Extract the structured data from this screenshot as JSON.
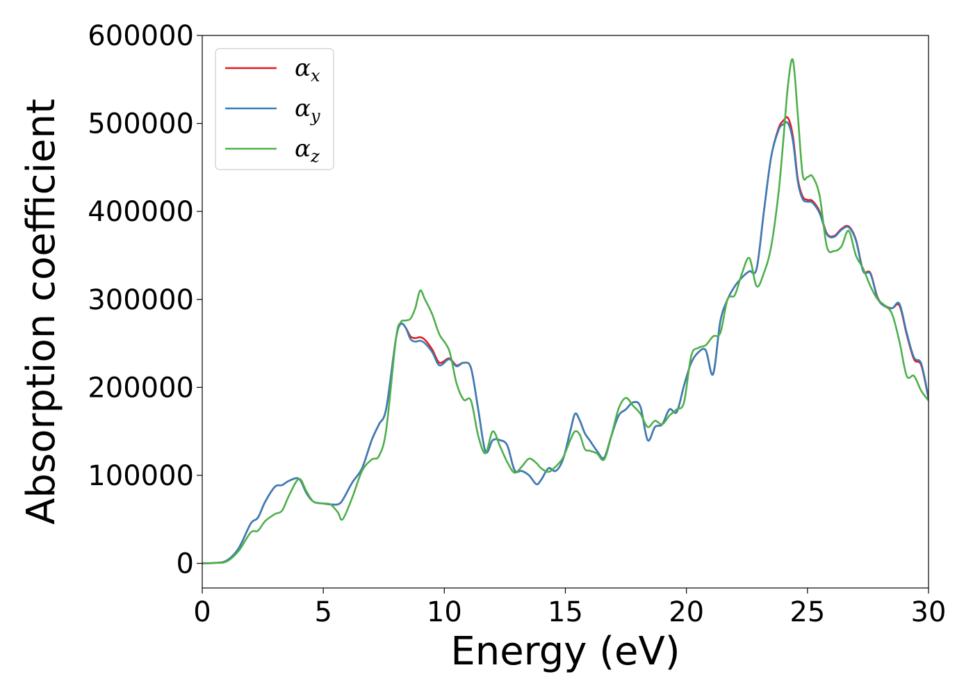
{
  "chart_data": {
    "type": "line",
    "title": "",
    "xlabel": "Energy (eV)",
    "ylabel": "Absorption coefficient",
    "xlim": [
      0,
      30
    ],
    "ylim": [
      -28000,
      600000
    ],
    "xticks": [
      0,
      5,
      10,
      15,
      20,
      25,
      30
    ],
    "yticks": [
      0,
      100000,
      200000,
      300000,
      400000,
      500000,
      600000
    ],
    "grid": false,
    "legend_position": "top-left",
    "x": [
      0,
      0.5,
      1,
      1.5,
      2,
      2.3,
      2.6,
      3,
      3.3,
      3.6,
      4,
      4.3,
      4.6,
      5,
      5.3,
      5.6,
      5.8,
      6.2,
      6.6,
      7,
      7.3,
      7.6,
      8,
      8.2,
      8.4,
      8.6,
      8.8,
      9,
      9.2,
      9.5,
      9.8,
      10.2,
      10.5,
      10.8,
      11.1,
      11.4,
      11.7,
      12,
      12.3,
      12.6,
      12.9,
      13.2,
      13.5,
      13.8,
      14,
      14.3,
      14.6,
      14.9,
      15.2,
      15.4,
      15.6,
      15.8,
      16,
      16.3,
      16.6,
      16.9,
      17.2,
      17.5,
      17.8,
      18.1,
      18.4,
      18.7,
      19,
      19.3,
      19.6,
      19.9,
      20.2,
      20.5,
      20.8,
      21.1,
      21.4,
      21.7,
      22,
      22.3,
      22.6,
      22.9,
      23.2,
      23.5,
      23.8,
      24,
      24.2,
      24.4,
      24.6,
      24.8,
      25,
      25.2,
      25.5,
      25.8,
      26.1,
      26.4,
      26.7,
      27,
      27.3,
      27.6,
      27.9,
      28.2,
      28.5,
      28.8,
      29.1,
      29.4,
      29.7,
      30
    ],
    "series": [
      {
        "name": "x",
        "color": "#e41a1c",
        "values": [
          0,
          500,
          3000,
          17000,
          45000,
          52000,
          70000,
          87000,
          89000,
          94000,
          96000,
          80000,
          70000,
          68000,
          67000,
          67000,
          72000,
          92000,
          108000,
          140000,
          158000,
          176000,
          255000,
          272000,
          268000,
          258000,
          256000,
          257000,
          254000,
          243000,
          228000,
          233000,
          225000,
          228000,
          222000,
          175000,
          127000,
          140000,
          140000,
          134000,
          106000,
          105000,
          100000,
          90000,
          95000,
          108000,
          105000,
          118000,
          150000,
          170000,
          162000,
          148000,
          140000,
          128000,
          120000,
          145000,
          168000,
          175000,
          183000,
          178000,
          140000,
          155000,
          158000,
          175000,
          172000,
          202000,
          228000,
          240000,
          242000,
          215000,
          275000,
          300000,
          315000,
          325000,
          332000,
          335000,
          400000,
          462000,
          494000,
          503000,
          506000,
          485000,
          437000,
          417000,
          413000,
          412000,
          400000,
          375000,
          372000,
          380000,
          383000,
          368000,
          333000,
          330000,
          302000,
          293000,
          290000,
          293000,
          260000,
          232000,
          225000,
          187000
        ]
      },
      {
        "name": "y",
        "color": "#377eb8",
        "values": [
          0,
          500,
          3000,
          17000,
          45000,
          52000,
          70000,
          87000,
          89000,
          94000,
          96000,
          80000,
          70000,
          68000,
          67000,
          67000,
          72000,
          92000,
          108000,
          140000,
          158000,
          176000,
          255000,
          272000,
          268000,
          255000,
          252000,
          253000,
          250000,
          240000,
          225000,
          232000,
          224000,
          228000,
          222000,
          175000,
          127000,
          140000,
          140000,
          134000,
          106000,
          105000,
          100000,
          90000,
          95000,
          108000,
          105000,
          118000,
          150000,
          170000,
          162000,
          148000,
          140000,
          128000,
          120000,
          145000,
          168000,
          175000,
          183000,
          178000,
          140000,
          155000,
          158000,
          175000,
          172000,
          202000,
          228000,
          240000,
          242000,
          215000,
          275000,
          300000,
          315000,
          325000,
          332000,
          335000,
          400000,
          462000,
          492000,
          499000,
          500000,
          480000,
          434000,
          414000,
          411000,
          410000,
          398000,
          374000,
          371000,
          379000,
          382000,
          367000,
          332000,
          329000,
          301000,
          292000,
          290000,
          295000,
          262000,
          234000,
          227000,
          188000
        ]
      },
      {
        "name": "z",
        "color": "#4daf4a",
        "values": [
          0,
          500,
          2000,
          14000,
          35000,
          37000,
          48000,
          56000,
          60000,
          78000,
          96000,
          82000,
          70000,
          68000,
          67000,
          58000,
          50000,
          75000,
          105000,
          118000,
          122000,
          152000,
          255000,
          274000,
          276000,
          278000,
          290000,
          310000,
          300000,
          283000,
          260000,
          242000,
          205000,
          186000,
          185000,
          145000,
          125000,
          150000,
          133000,
          115000,
          103000,
          110000,
          119000,
          114000,
          108000,
          104000,
          110000,
          120000,
          140000,
          150000,
          146000,
          130000,
          128000,
          125000,
          118000,
          145000,
          176000,
          188000,
          179000,
          170000,
          155000,
          162000,
          158000,
          168000,
          175000,
          183000,
          236000,
          245000,
          248000,
          258000,
          262000,
          300000,
          305000,
          330000,
          347000,
          315000,
          330000,
          360000,
          420000,
          480000,
          545000,
          572000,
          510000,
          442000,
          439000,
          440000,
          418000,
          360000,
          355000,
          360000,
          378000,
          350000,
          335000,
          315000,
          300000,
          293000,
          283000,
          252000,
          213000,
          213000,
          196000,
          185000
        ]
      }
    ]
  }
}
